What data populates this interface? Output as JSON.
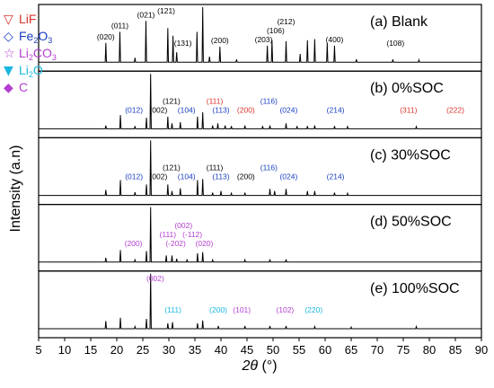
{
  "chart_data": {
    "type": "line",
    "xlabel_symbol": "2θ",
    "xlabel_unit": " (°)",
    "ylabel": "Intensity (a.n)",
    "xlim": [
      5,
      90
    ],
    "x_ticks": [
      5,
      10,
      15,
      20,
      25,
      30,
      35,
      40,
      45,
      50,
      55,
      60,
      65,
      70,
      75,
      80,
      85,
      90
    ],
    "legend": [
      {
        "symbol": "▽",
        "label_parts": [
          [
            "LiF",
            false
          ]
        ],
        "color": "#d9342b"
      },
      {
        "symbol": "◇",
        "label_parts": [
          [
            "Fe",
            false
          ],
          [
            "2",
            true
          ],
          [
            "O",
            false
          ],
          [
            "3",
            true
          ]
        ],
        "color": "#1a3fbf"
      },
      {
        "symbol": "☆",
        "label_parts": [
          [
            "Li",
            false
          ],
          [
            "2",
            true
          ],
          [
            "CO",
            false
          ],
          [
            "3",
            true
          ]
        ],
        "color": "#b43fd0"
      },
      {
        "symbol": "▼",
        "label_parts": [
          [
            "Li",
            false
          ],
          [
            "2",
            true
          ],
          [
            "O",
            false
          ]
        ],
        "color": "#19b6e0"
      },
      {
        "symbol": "◆",
        "label_parts": [
          [
            "C",
            false
          ]
        ],
        "color": "#b43fd0"
      }
    ],
    "panels": [
      {
        "label": "(a) Blank",
        "peaks": [
          [
            17.9,
            0.35
          ],
          [
            20.6,
            0.55
          ],
          [
            23.5,
            0.08
          ],
          [
            25.6,
            0.75
          ],
          [
            29.8,
            0.62
          ],
          [
            30.8,
            0.48
          ],
          [
            31.5,
            0.18
          ],
          [
            35.4,
            0.55
          ],
          [
            36.5,
            1.0
          ],
          [
            37.8,
            0.1
          ],
          [
            39.8,
            0.28
          ],
          [
            43.0,
            0.05
          ],
          [
            48.9,
            0.3
          ],
          [
            49.8,
            0.4
          ],
          [
            52.5,
            0.38
          ],
          [
            55.2,
            0.15
          ],
          [
            56.6,
            0.4
          ],
          [
            58.0,
            0.42
          ],
          [
            60.4,
            0.35
          ],
          [
            61.8,
            0.3
          ],
          [
            66.0,
            0.05
          ],
          [
            73.0,
            0.05
          ],
          [
            78.0,
            0.04
          ]
        ],
        "annotations": [
          {
            "text": "(020)",
            "x": 17.9,
            "color": "#000000"
          },
          {
            "text": "(011)",
            "x": 20.6,
            "color": "#000000"
          },
          {
            "text": "(021)",
            "x": 25.6,
            "color": "#000000"
          },
          {
            "text": "(121)",
            "x": 29.5,
            "color": "#000000"
          },
          {
            "text": "(131)",
            "x": 32.7,
            "color": "#000000"
          },
          {
            "text": "(200)",
            "x": 39.8,
            "color": "#000000"
          },
          {
            "text": "(203)",
            "x": 48.2,
            "color": "#000000"
          },
          {
            "text": "(106)",
            "x": 50.5,
            "color": "#000000"
          },
          {
            "text": "(212)",
            "x": 52.5,
            "color": "#000000"
          },
          {
            "text": "(400)",
            "x": 61.8,
            "color": "#000000"
          },
          {
            "text": "(108)",
            "x": 73.5,
            "color": "#000000"
          }
        ]
      },
      {
        "label": "(b) 0%SOC",
        "peaks": [
          [
            17.9,
            0.06
          ],
          [
            20.7,
            0.25
          ],
          [
            23.5,
            0.05
          ],
          [
            25.7,
            0.2
          ],
          [
            26.5,
            1.0
          ],
          [
            29.8,
            0.22
          ],
          [
            30.6,
            0.1
          ],
          [
            32.2,
            0.12
          ],
          [
            35.5,
            0.22
          ],
          [
            36.5,
            0.3
          ],
          [
            38.4,
            0.06
          ],
          [
            39.4,
            0.1
          ],
          [
            40.8,
            0.06
          ],
          [
            42.0,
            0.05
          ],
          [
            44.6,
            0.06
          ],
          [
            48.0,
            0.05
          ],
          [
            49.4,
            0.06
          ],
          [
            52.5,
            0.1
          ],
          [
            54.6,
            0.05
          ],
          [
            56.6,
            0.05
          ],
          [
            58.0,
            0.06
          ],
          [
            61.8,
            0.05
          ],
          [
            64.3,
            0.04
          ],
          [
            77.5,
            0.04
          ]
        ],
        "annotations": [
          {
            "text": "(002)",
            "x": 28.0,
            "color": "#000000"
          },
          {
            "text": "(113)",
            "x": 40.0,
            "color": "#1a3fbf"
          },
          {
            "text": "(012)",
            "x": 23.3,
            "color": "#1a3fbf"
          },
          {
            "text": "(121)",
            "x": 30.5,
            "color": "#000000"
          },
          {
            "text": "(104)",
            "x": 33.4,
            "color": "#1a3fbf"
          },
          {
            "text": "(111)",
            "x": 38.8,
            "color": "#d9342b"
          },
          {
            "text": "(200)",
            "x": 44.8,
            "color": "#d9342b"
          },
          {
            "text": "(116)",
            "x": 49.2,
            "color": "#1a3fbf"
          },
          {
            "text": "(024)",
            "x": 53.0,
            "color": "#1a3fbf"
          },
          {
            "text": "(214)",
            "x": 62.0,
            "color": "#1a3fbf"
          },
          {
            "text": "(311)",
            "x": 76.0,
            "color": "#d9342b"
          },
          {
            "text": "(222)",
            "x": 85.0,
            "color": "#d9342b"
          }
        ]
      },
      {
        "label": "(c) 30%SOC",
        "peaks": [
          [
            17.9,
            0.1
          ],
          [
            20.7,
            0.28
          ],
          [
            23.5,
            0.06
          ],
          [
            25.7,
            0.2
          ],
          [
            26.5,
            1.0
          ],
          [
            29.8,
            0.2
          ],
          [
            30.6,
            0.08
          ],
          [
            32.2,
            0.13
          ],
          [
            35.5,
            0.28
          ],
          [
            36.5,
            0.3
          ],
          [
            38.4,
            0.05
          ],
          [
            40.0,
            0.08
          ],
          [
            42.0,
            0.04
          ],
          [
            44.6,
            0.05
          ],
          [
            49.4,
            0.12
          ],
          [
            50.3,
            0.08
          ],
          [
            52.5,
            0.12
          ],
          [
            56.6,
            0.08
          ],
          [
            58.0,
            0.08
          ],
          [
            61.8,
            0.05
          ],
          [
            64.3,
            0.04
          ]
        ],
        "annotations": [
          {
            "text": "(002)",
            "x": 28.0,
            "color": "#000000"
          },
          {
            "text": "(113)",
            "x": 40.0,
            "color": "#1a3fbf"
          },
          {
            "text": "(012)",
            "x": 23.3,
            "color": "#1a3fbf"
          },
          {
            "text": "(121)",
            "x": 30.5,
            "color": "#000000"
          },
          {
            "text": "(104)",
            "x": 33.4,
            "color": "#1a3fbf"
          },
          {
            "text": "(111)",
            "x": 38.8,
            "color": "#000000"
          },
          {
            "text": "(200)",
            "x": 44.8,
            "color": "#000000"
          },
          {
            "text": "(116)",
            "x": 49.2,
            "color": "#1a3fbf"
          },
          {
            "text": "(024)",
            "x": 53.0,
            "color": "#1a3fbf"
          },
          {
            "text": "(214)",
            "x": 62.0,
            "color": "#1a3fbf"
          }
        ]
      },
      {
        "label": "(d) 50%SOC",
        "peaks": [
          [
            17.9,
            0.08
          ],
          [
            20.7,
            0.22
          ],
          [
            23.5,
            0.04
          ],
          [
            25.7,
            0.2
          ],
          [
            26.5,
            1.0
          ],
          [
            29.5,
            0.12
          ],
          [
            30.6,
            0.12
          ],
          [
            31.5,
            0.06
          ],
          [
            33.5,
            0.05
          ],
          [
            35.5,
            0.16
          ],
          [
            36.5,
            0.18
          ],
          [
            38.4,
            0.04
          ],
          [
            44.6,
            0.04
          ],
          [
            49.4,
            0.05
          ],
          [
            52.5,
            0.05
          ]
        ],
        "annotations": [
          {
            "text": "(-202)",
            "x": 31.3,
            "color": "#b43fd0"
          },
          {
            "text": "(-112)",
            "x": 34.5,
            "color": "#b43fd0"
          },
          {
            "text": "(020)",
            "x": 36.8,
            "color": "#b43fd0"
          },
          {
            "text": "(200)",
            "x": 23.2,
            "color": "#b43fd0"
          },
          {
            "text": "(111)",
            "x": 29.8,
            "color": "#b43fd0"
          },
          {
            "text": "(002)",
            "x": 32.8,
            "color": "#b43fd0"
          }
        ]
      },
      {
        "label": "(e) 100%SOC",
        "peaks": [
          [
            17.9,
            0.14
          ],
          [
            20.7,
            0.2
          ],
          [
            23.5,
            0.04
          ],
          [
            25.7,
            0.18
          ],
          [
            26.5,
            1.0
          ],
          [
            29.8,
            0.1
          ],
          [
            30.7,
            0.12
          ],
          [
            35.5,
            0.1
          ],
          [
            36.5,
            0.15
          ],
          [
            39.5,
            0.05
          ],
          [
            44.6,
            0.05
          ],
          [
            49.4,
            0.05
          ],
          [
            52.5,
            0.05
          ],
          [
            58.0,
            0.04
          ],
          [
            65.0,
            0.03
          ],
          [
            77.5,
            0.04
          ]
        ],
        "annotations": [
          {
            "text": "(002)",
            "x": 27.4,
            "color": "#b43fd0"
          },
          {
            "text": "(111)",
            "x": 30.8,
            "color": "#19b6e0"
          },
          {
            "text": "(200)",
            "x": 39.5,
            "color": "#19b6e0"
          },
          {
            "text": "(101)",
            "x": 44.0,
            "color": "#b43fd0"
          },
          {
            "text": "(102)",
            "x": 52.3,
            "color": "#b43fd0"
          },
          {
            "text": "(220)",
            "x": 57.8,
            "color": "#19b6e0"
          }
        ]
      }
    ],
    "grid": false,
    "legend_position": "top-left"
  }
}
